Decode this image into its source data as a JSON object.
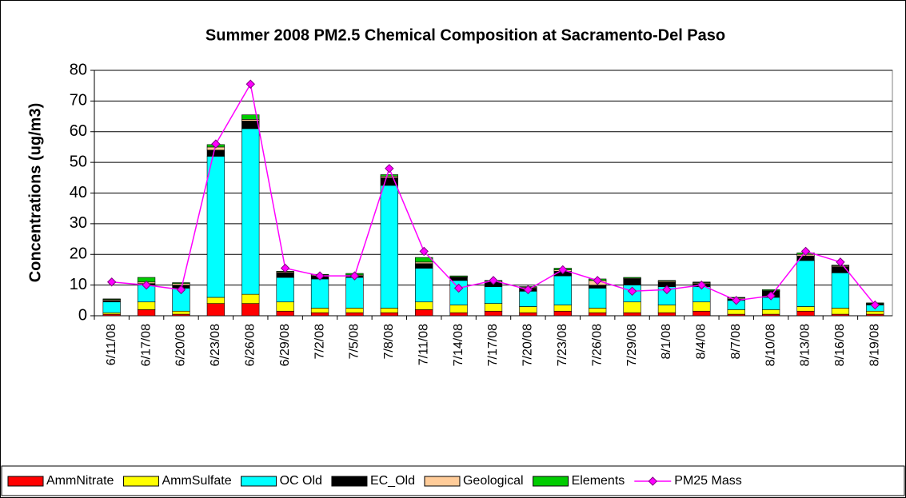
{
  "chart_data": {
    "type": "bar",
    "stacked": true,
    "title": "Summer 2008 PM2.5 Chemical Composition at Sacramento-Del Paso",
    "y_label": "Concentrations (ug/m3)",
    "categories": [
      "6/11/08",
      "6/17/08",
      "6/20/08",
      "6/23/08",
      "6/26/08",
      "6/29/08",
      "7/2/08",
      "7/5/08",
      "7/8/08",
      "7/11/08",
      "7/14/08",
      "7/17/08",
      "7/20/08",
      "7/23/08",
      "7/26/08",
      "7/29/08",
      "8/1/08",
      "8/4/08",
      "8/7/08",
      "8/10/08",
      "8/13/08",
      "8/16/08",
      "8/19/08"
    ],
    "series": [
      {
        "name": "AmmNitrate",
        "color": "#ff0000",
        "values": [
          0.5,
          2,
          0.5,
          4,
          4,
          1.5,
          1,
          1,
          1,
          2,
          1,
          1.5,
          1,
          1.5,
          1,
          1,
          1,
          1.5,
          0.5,
          0.5,
          1.5,
          0.5,
          0.5
        ]
      },
      {
        "name": "AmmSulfate",
        "color": "#ffff00",
        "values": [
          0.5,
          2.5,
          1,
          2,
          3,
          3,
          1.5,
          1.5,
          1.5,
          2.5,
          2.5,
          2.5,
          2,
          2,
          1.5,
          3.5,
          2.5,
          3,
          1.5,
          1.5,
          1.5,
          2,
          1
        ]
      },
      {
        "name": "OC Old",
        "color": "#00ffff",
        "values": [
          3.5,
          5.5,
          7.5,
          46,
          54,
          8,
          9.5,
          10,
          40,
          11,
          8,
          5.5,
          5,
          9.5,
          6.5,
          5.5,
          6,
          5,
          3,
          4,
          15,
          11.5,
          2
        ]
      },
      {
        "name": "EC_Old",
        "color": "#000000",
        "values": [
          0.5,
          0.5,
          1,
          2,
          2.5,
          1.5,
          1,
          0.5,
          2.5,
          1.5,
          1,
          1.5,
          1,
          1.5,
          1,
          2,
          1.5,
          1,
          0.5,
          2,
          1.5,
          2,
          0.3
        ]
      },
      {
        "name": "Geological",
        "color": "#ffcc99",
        "values": [
          0.3,
          0.5,
          0.5,
          1,
          0.5,
          0.3,
          0.3,
          0.3,
          0.5,
          0.5,
          0.2,
          0.3,
          0.3,
          0.5,
          1.5,
          0.2,
          0.3,
          0.3,
          0.3,
          0.2,
          0.5,
          0.3,
          0.2
        ]
      },
      {
        "name": "Elements",
        "color": "#00cc00",
        "values": [
          0.2,
          1.5,
          0.3,
          0.8,
          1.5,
          0.2,
          0.2,
          0.5,
          0.5,
          1.5,
          0.3,
          0.2,
          0.2,
          0.5,
          0.5,
          0.3,
          0.2,
          0.2,
          0.2,
          0.3,
          0.5,
          0.2,
          0.2
        ]
      },
      {
        "name": "PM25 Mass",
        "type": "line",
        "color": "#ff00ff",
        "values": [
          11,
          10,
          8.5,
          56,
          75.5,
          15.5,
          13,
          13,
          48,
          21,
          9,
          11.5,
          8.5,
          15,
          11.5,
          8,
          8.5,
          10,
          5,
          6.5,
          21,
          17.5,
          3.5
        ]
      }
    ],
    "ylim": [
      0,
      80
    ],
    "yticks": [
      0,
      10,
      20,
      30,
      40,
      50,
      60,
      70,
      80
    ],
    "grid": true,
    "legend": "bottom"
  }
}
